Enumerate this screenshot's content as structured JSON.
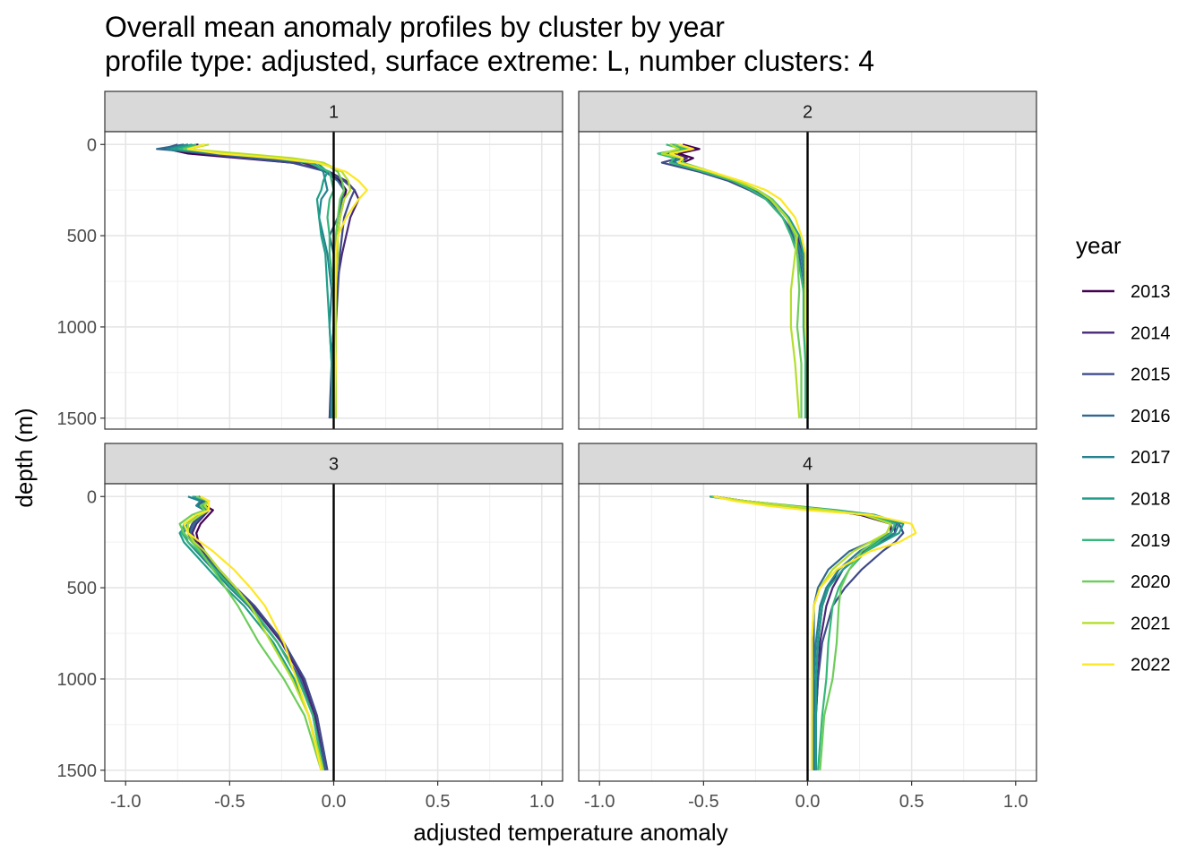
{
  "title": "Overall mean anomaly profiles by cluster by year",
  "subtitle": "profile type: adjusted, surface extreme: L, number clusters: 4",
  "chart_data": {
    "type": "line",
    "xlabel": "adjusted temperature anomaly",
    "ylabel": "depth (m)",
    "xlim": [
      -1.1,
      1.1
    ],
    "ylim": [
      1560,
      -70
    ],
    "y_reversed": true,
    "x_ticks": [
      "-1.0",
      "-0.5",
      "0.0",
      "0.5",
      "1.0"
    ],
    "x_tick_values": [
      -1.0,
      -0.5,
      0.0,
      0.5,
      1.0
    ],
    "y_ticks": [
      "0",
      "500",
      "1000",
      "1500"
    ],
    "y_tick_values": [
      0,
      500,
      1000,
      1500
    ],
    "grid": true,
    "reference_line_x": 0,
    "legend": {
      "title": "year",
      "position": "right",
      "entries": [
        "2013",
        "2014",
        "2015",
        "2016",
        "2017",
        "2018",
        "2019",
        "2020",
        "2021",
        "2022"
      ],
      "colors": [
        "#440154",
        "#482878",
        "#3E4A89",
        "#31688E",
        "#26828E",
        "#1F9E89",
        "#35B779",
        "#6DCD59",
        "#B4DE2C",
        "#FDE725"
      ]
    },
    "panels": [
      {
        "label": "1",
        "depths": [
          0,
          25,
          50,
          75,
          100,
          150,
          200,
          250,
          300,
          400,
          500,
          600,
          800,
          1000,
          1200,
          1500
        ],
        "series": [
          {
            "name": "2013",
            "x": [
              -0.65,
              -0.8,
              -0.7,
              -0.45,
              -0.2,
              -0.02,
              0.03,
              0.06,
              0.05,
              0.03,
              0.02,
              0.01,
              0.0,
              0.0,
              -0.01,
              -0.01
            ]
          },
          {
            "name": "2014",
            "x": [
              -0.7,
              -0.78,
              -0.6,
              -0.4,
              -0.15,
              -0.02,
              0.06,
              0.1,
              0.12,
              0.08,
              0.06,
              0.04,
              0.01,
              0.0,
              -0.01,
              -0.02
            ]
          },
          {
            "name": "2015",
            "x": [
              -0.75,
              -0.82,
              -0.62,
              -0.42,
              -0.2,
              -0.03,
              0.05,
              0.1,
              0.08,
              0.05,
              0.04,
              0.03,
              0.02,
              0.01,
              0.0,
              -0.02
            ]
          },
          {
            "name": "2016",
            "x": [
              -0.72,
              -0.85,
              -0.58,
              -0.35,
              -0.1,
              -0.04,
              0.02,
              0.05,
              0.04,
              0.02,
              -0.02,
              0.0,
              0.0,
              0.0,
              -0.01,
              -0.01
            ]
          },
          {
            "name": "2017",
            "x": [
              -0.7,
              -0.8,
              -0.55,
              -0.3,
              -0.1,
              -0.05,
              -0.04,
              -0.03,
              -0.06,
              -0.07,
              -0.05,
              -0.03,
              -0.01,
              -0.02,
              -0.01,
              -0.01
            ]
          },
          {
            "name": "2018",
            "x": [
              -0.68,
              -0.78,
              -0.5,
              -0.25,
              -0.08,
              -0.03,
              -0.05,
              -0.06,
              -0.08,
              -0.07,
              -0.06,
              -0.04,
              -0.03,
              -0.02,
              -0.01,
              -0.01
            ]
          },
          {
            "name": "2019",
            "x": [
              -0.66,
              -0.74,
              -0.52,
              -0.28,
              -0.12,
              -0.02,
              -0.01,
              0.0,
              -0.02,
              -0.03,
              -0.02,
              -0.02,
              0.0,
              0.0,
              0.0,
              0.0
            ]
          },
          {
            "name": "2020",
            "x": [
              -0.62,
              -0.72,
              -0.5,
              -0.25,
              -0.05,
              0.02,
              0.04,
              0.05,
              0.03,
              0.02,
              0.01,
              0.01,
              0.0,
              0.01,
              0.01,
              0.01
            ]
          },
          {
            "name": "2021",
            "x": [
              -0.6,
              -0.7,
              -0.45,
              -0.2,
              -0.05,
              0.04,
              0.07,
              0.08,
              0.05,
              0.03,
              0.02,
              0.02,
              0.01,
              0.01,
              0.01,
              0.01
            ]
          },
          {
            "name": "2022",
            "x": [
              -0.62,
              -0.7,
              -0.55,
              -0.28,
              -0.08,
              0.06,
              0.12,
              0.16,
              0.12,
              0.06,
              0.02,
              0.01,
              0.01,
              0.0,
              0.01,
              0.0
            ]
          }
        ]
      },
      {
        "label": "2",
        "depths": [
          0,
          25,
          50,
          75,
          100,
          150,
          200,
          250,
          300,
          400,
          500,
          600,
          800,
          1000,
          1200,
          1500
        ],
        "series": [
          {
            "name": "2013",
            "x": [
              -0.6,
              -0.52,
              -0.62,
              -0.55,
              -0.6,
              -0.48,
              -0.35,
              -0.25,
              -0.18,
              -0.1,
              -0.05,
              -0.02,
              0.0,
              -0.01,
              -0.01,
              -0.01
            ]
          },
          {
            "name": "2014",
            "x": [
              -0.62,
              -0.55,
              -0.65,
              -0.58,
              -0.62,
              -0.5,
              -0.36,
              -0.26,
              -0.18,
              -0.1,
              -0.05,
              -0.02,
              0.0,
              -0.01,
              -0.01,
              -0.01
            ]
          },
          {
            "name": "2015",
            "x": [
              -0.66,
              -0.58,
              -0.7,
              -0.62,
              -0.7,
              -0.52,
              -0.38,
              -0.28,
              -0.2,
              -0.12,
              -0.06,
              -0.03,
              -0.01,
              -0.01,
              -0.01,
              -0.01
            ]
          },
          {
            "name": "2016",
            "x": [
              -0.64,
              -0.56,
              -0.68,
              -0.6,
              -0.66,
              -0.5,
              -0.36,
              -0.26,
              -0.19,
              -0.12,
              -0.07,
              -0.04,
              -0.02,
              -0.01,
              -0.01,
              0.0
            ]
          },
          {
            "name": "2017",
            "x": [
              -0.66,
              -0.6,
              -0.7,
              -0.62,
              -0.64,
              -0.5,
              -0.35,
              -0.25,
              -0.18,
              -0.1,
              -0.06,
              -0.03,
              -0.01,
              0.0,
              0.0,
              0.0
            ]
          },
          {
            "name": "2018",
            "x": [
              -0.65,
              -0.58,
              -0.66,
              -0.6,
              -0.62,
              -0.48,
              -0.34,
              -0.24,
              -0.17,
              -0.09,
              -0.04,
              -0.02,
              0.0,
              0.0,
              0.0,
              0.0
            ]
          },
          {
            "name": "2019",
            "x": [
              -0.68,
              -0.6,
              -0.72,
              -0.64,
              -0.66,
              -0.5,
              -0.36,
              -0.27,
              -0.2,
              -0.12,
              -0.08,
              -0.05,
              -0.02,
              -0.02,
              -0.01,
              -0.01
            ]
          },
          {
            "name": "2020",
            "x": [
              -0.64,
              -0.56,
              -0.66,
              -0.6,
              -0.6,
              -0.46,
              -0.34,
              -0.24,
              -0.17,
              -0.1,
              -0.06,
              -0.05,
              -0.04,
              -0.05,
              -0.03,
              -0.03
            ]
          },
          {
            "name": "2021",
            "x": [
              -0.66,
              -0.62,
              -0.7,
              -0.6,
              -0.62,
              -0.47,
              -0.34,
              -0.24,
              -0.18,
              -0.1,
              -0.05,
              -0.06,
              -0.08,
              -0.08,
              -0.06,
              -0.04
            ]
          },
          {
            "name": "2022",
            "x": [
              -0.62,
              -0.55,
              -0.66,
              -0.6,
              -0.62,
              -0.46,
              -0.32,
              -0.2,
              -0.13,
              -0.06,
              -0.03,
              -0.01,
              -0.01,
              -0.01,
              0.0,
              0.0
            ]
          }
        ]
      },
      {
        "label": "3",
        "depths": [
          0,
          25,
          50,
          75,
          100,
          150,
          200,
          250,
          300,
          400,
          500,
          600,
          800,
          1000,
          1200,
          1500
        ],
        "series": [
          {
            "name": "2013",
            "x": [
              -0.65,
              -0.6,
              -0.62,
              -0.58,
              -0.6,
              -0.64,
              -0.66,
              -0.65,
              -0.62,
              -0.55,
              -0.47,
              -0.38,
              -0.25,
              -0.15,
              -0.09,
              -0.04
            ]
          },
          {
            "name": "2014",
            "x": [
              -0.66,
              -0.62,
              -0.64,
              -0.6,
              -0.62,
              -0.66,
              -0.68,
              -0.66,
              -0.63,
              -0.56,
              -0.48,
              -0.39,
              -0.25,
              -0.15,
              -0.09,
              -0.04
            ]
          },
          {
            "name": "2015",
            "x": [
              -0.68,
              -0.63,
              -0.66,
              -0.62,
              -0.64,
              -0.68,
              -0.7,
              -0.68,
              -0.64,
              -0.56,
              -0.47,
              -0.38,
              -0.24,
              -0.14,
              -0.08,
              -0.03
            ]
          },
          {
            "name": "2016",
            "x": [
              -0.67,
              -0.62,
              -0.65,
              -0.61,
              -0.63,
              -0.67,
              -0.69,
              -0.67,
              -0.64,
              -0.56,
              -0.48,
              -0.4,
              -0.27,
              -0.16,
              -0.1,
              -0.04
            ]
          },
          {
            "name": "2017",
            "x": [
              -0.7,
              -0.64,
              -0.66,
              -0.62,
              -0.66,
              -0.7,
              -0.72,
              -0.7,
              -0.66,
              -0.58,
              -0.5,
              -0.41,
              -0.27,
              -0.17,
              -0.1,
              -0.05
            ]
          },
          {
            "name": "2018",
            "x": [
              -0.68,
              -0.6,
              -0.62,
              -0.6,
              -0.64,
              -0.7,
              -0.74,
              -0.72,
              -0.68,
              -0.6,
              -0.52,
              -0.43,
              -0.29,
              -0.19,
              -0.12,
              -0.06
            ]
          },
          {
            "name": "2019",
            "x": [
              -0.66,
              -0.6,
              -0.63,
              -0.6,
              -0.65,
              -0.72,
              -0.73,
              -0.7,
              -0.65,
              -0.57,
              -0.49,
              -0.4,
              -0.27,
              -0.17,
              -0.1,
              -0.05
            ]
          },
          {
            "name": "2020",
            "x": [
              -0.66,
              -0.6,
              -0.64,
              -0.62,
              -0.68,
              -0.74,
              -0.72,
              -0.68,
              -0.64,
              -0.58,
              -0.52,
              -0.46,
              -0.36,
              -0.24,
              -0.14,
              -0.06
            ]
          },
          {
            "name": "2021",
            "x": [
              -0.64,
              -0.6,
              -0.62,
              -0.6,
              -0.64,
              -0.7,
              -0.7,
              -0.67,
              -0.62,
              -0.55,
              -0.47,
              -0.4,
              -0.3,
              -0.2,
              -0.12,
              -0.05
            ]
          },
          {
            "name": "2022",
            "x": [
              -0.64,
              -0.6,
              -0.6,
              -0.6,
              -0.66,
              -0.72,
              -0.7,
              -0.64,
              -0.58,
              -0.48,
              -0.4,
              -0.33,
              -0.24,
              -0.18,
              -0.12,
              -0.06
            ]
          }
        ]
      },
      {
        "label": "4",
        "depths": [
          0,
          25,
          50,
          75,
          100,
          150,
          200,
          250,
          300,
          400,
          500,
          600,
          800,
          1000,
          1200,
          1500
        ],
        "series": [
          {
            "name": "2013",
            "x": [
              -0.45,
              -0.3,
              -0.1,
              0.1,
              0.25,
              0.4,
              0.4,
              0.33,
              0.25,
              0.15,
              0.1,
              0.07,
              0.05,
              0.04,
              0.03,
              0.03
            ]
          },
          {
            "name": "2014",
            "x": [
              -0.45,
              -0.3,
              -0.1,
              0.1,
              0.26,
              0.42,
              0.42,
              0.35,
              0.27,
              0.17,
              0.12,
              0.09,
              0.06,
              0.05,
              0.04,
              0.04
            ]
          },
          {
            "name": "2015",
            "x": [
              -0.46,
              -0.32,
              -0.12,
              0.1,
              0.28,
              0.44,
              0.46,
              0.42,
              0.36,
              0.26,
              0.18,
              0.12,
              0.07,
              0.05,
              0.04,
              0.04
            ]
          },
          {
            "name": "2016",
            "x": [
              -0.46,
              -0.3,
              -0.1,
              0.12,
              0.3,
              0.43,
              0.4,
              0.3,
              0.2,
              0.1,
              0.05,
              0.03,
              0.03,
              0.03,
              0.03,
              0.03
            ]
          },
          {
            "name": "2017",
            "x": [
              -0.47,
              -0.32,
              -0.1,
              0.12,
              0.3,
              0.44,
              0.42,
              0.33,
              0.25,
              0.15,
              0.09,
              0.06,
              0.04,
              0.03,
              0.03,
              0.03
            ]
          },
          {
            "name": "2018",
            "x": [
              -0.47,
              -0.3,
              -0.08,
              0.14,
              0.32,
              0.46,
              0.44,
              0.36,
              0.28,
              0.17,
              0.1,
              0.07,
              0.05,
              0.04,
              0.04,
              0.04
            ]
          },
          {
            "name": "2019",
            "x": [
              -0.46,
              -0.3,
              -0.1,
              0.12,
              0.3,
              0.42,
              0.4,
              0.34,
              0.28,
              0.2,
              0.15,
              0.12,
              0.1,
              0.09,
              0.07,
              0.05
            ]
          },
          {
            "name": "2020",
            "x": [
              -0.46,
              -0.32,
              -0.12,
              0.08,
              0.28,
              0.4,
              0.38,
              0.32,
              0.26,
              0.2,
              0.16,
              0.15,
              0.14,
              0.12,
              0.08,
              0.06
            ]
          },
          {
            "name": "2021",
            "x": [
              -0.45,
              -0.3,
              -0.1,
              0.1,
              0.27,
              0.4,
              0.38,
              0.3,
              0.22,
              0.12,
              0.06,
              0.03,
              0.02,
              0.02,
              0.02,
              0.02
            ]
          },
          {
            "name": "2022",
            "x": [
              -0.45,
              -0.35,
              -0.2,
              0.0,
              0.3,
              0.5,
              0.52,
              0.44,
              0.3,
              0.14,
              0.06,
              0.03,
              0.02,
              0.02,
              0.02,
              0.02
            ]
          }
        ]
      }
    ]
  }
}
